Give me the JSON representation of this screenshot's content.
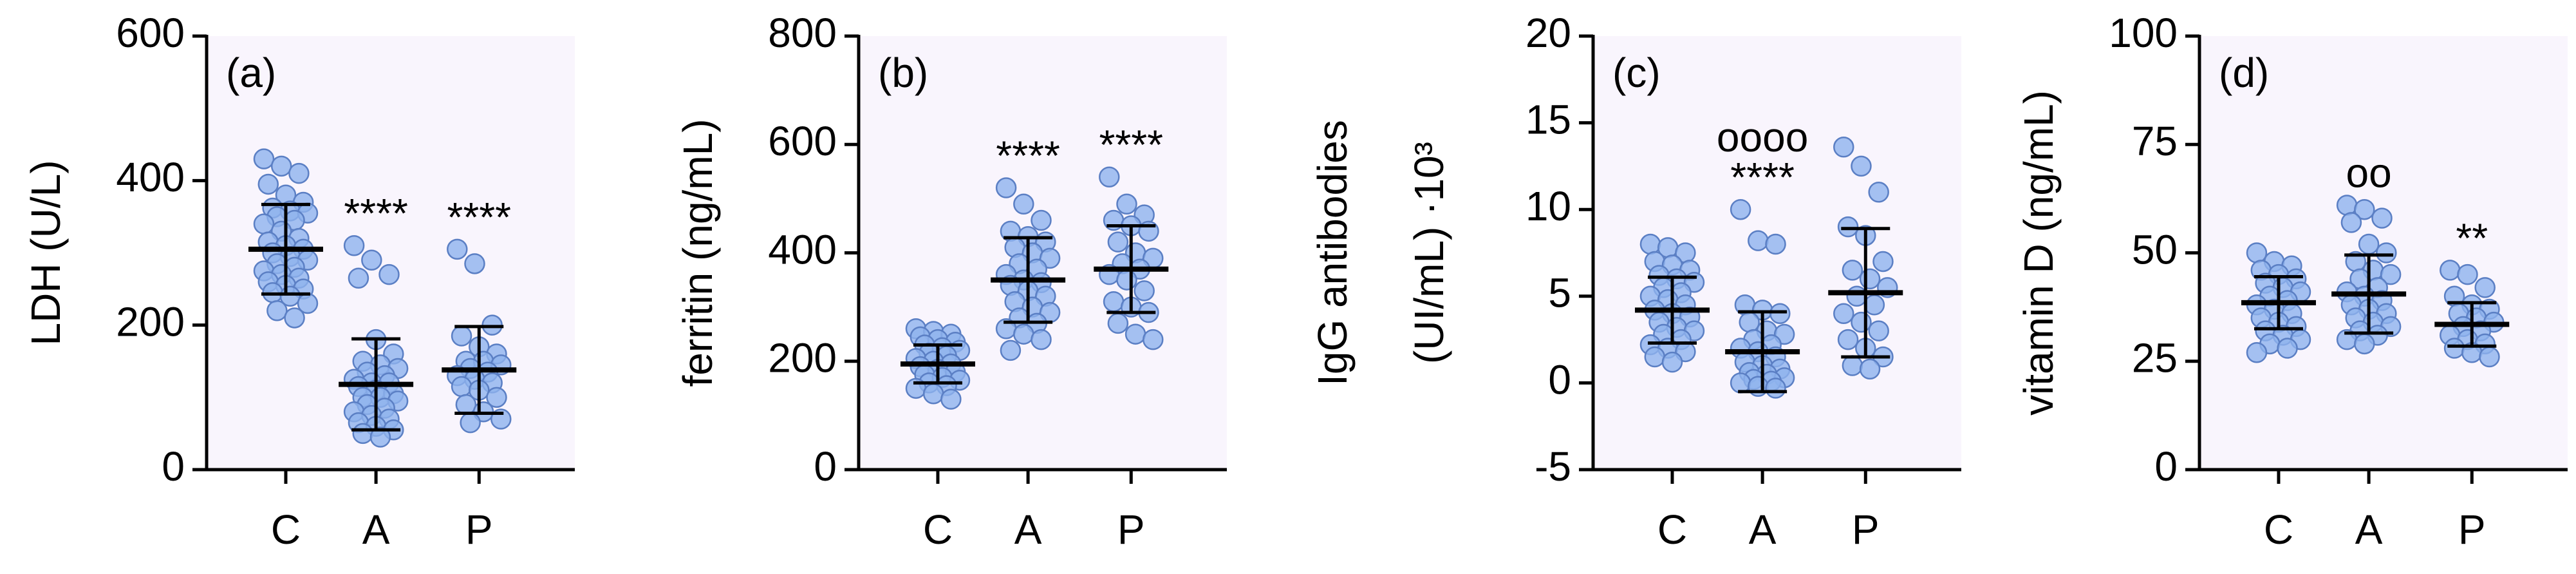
{
  "chart_data": [
    {
      "type": "dotplot",
      "panel_label": "(a)",
      "ylabel": [
        "LDH (U/L)"
      ],
      "categories": [
        "C",
        "A",
        "P"
      ],
      "color": "#8fb3ee",
      "ylim": [
        0,
        600
      ],
      "yticks": [
        0,
        200,
        400,
        600
      ],
      "points": [
        [
          430,
          420,
          410,
          395,
          380,
          370,
          362,
          358,
          355,
          350,
          345,
          340,
          330,
          320,
          315,
          310,
          305,
          300,
          295,
          290,
          285,
          280,
          275,
          270,
          265,
          260,
          255,
          250,
          245,
          240,
          230,
          220,
          210
        ],
        [
          310,
          290,
          270,
          265,
          180,
          160,
          150,
          145,
          140,
          135,
          130,
          125,
          120,
          120,
          115,
          110,
          105,
          100,
          100,
          95,
          90,
          85,
          80,
          75,
          70,
          65,
          60,
          55,
          50,
          45
        ],
        [
          305,
          285,
          200,
          185,
          170,
          160,
          150,
          150,
          145,
          140,
          135,
          130,
          125,
          120,
          115,
          110,
          100,
          90,
          80,
          70,
          65
        ]
      ],
      "mean": [
        305,
        118,
        138
      ],
      "sd": [
        62,
        63,
        60
      ],
      "annotations": [
        null,
        [
          "****"
        ],
        [
          "****"
        ]
      ]
    },
    {
      "type": "dotplot",
      "panel_label": "(b)",
      "ylabel": [
        "ferritin (ng/mL)"
      ],
      "categories": [
        "C",
        "A",
        "P"
      ],
      "color": "#8fb3ee",
      "ylim": [
        0,
        800
      ],
      "yticks": [
        0,
        200,
        400,
        600,
        800
      ],
      "points": [
        [
          260,
          255,
          250,
          245,
          240,
          235,
          230,
          225,
          220,
          215,
          210,
          205,
          200,
          195,
          190,
          185,
          180,
          175,
          170,
          165,
          160,
          155,
          150,
          140,
          130
        ],
        [
          520,
          490,
          460,
          440,
          430,
          420,
          410,
          400,
          390,
          380,
          370,
          360,
          350,
          345,
          340,
          330,
          320,
          310,
          300,
          290,
          280,
          270,
          260,
          250,
          240,
          220
        ],
        [
          540,
          490,
          470,
          460,
          450,
          440,
          420,
          400,
          390,
          380,
          370,
          360,
          350,
          330,
          310,
          300,
          290,
          270,
          250,
          240
        ]
      ],
      "mean": [
        195,
        350,
        370
      ],
      "sd": [
        35,
        78,
        80
      ],
      "annotations": [
        null,
        [
          "****"
        ],
        [
          "****"
        ]
      ]
    },
    {
      "type": "dotplot",
      "panel_label": "(c)",
      "ylabel": [
        "IgG antibodies",
        "(UI/mL) ·10³"
      ],
      "categories": [
        "C",
        "A",
        "P"
      ],
      "color": "#8fb3ee",
      "ylim": [
        -5,
        20
      ],
      "yticks": [
        -5,
        0,
        5,
        10,
        15,
        20
      ],
      "points": [
        [
          8,
          7.8,
          7.5,
          7,
          6.8,
          6.5,
          6.2,
          6,
          5.8,
          5.5,
          5.2,
          5,
          4.8,
          4.5,
          4.2,
          4,
          3.8,
          3.5,
          3.2,
          3,
          2.8,
          2.5,
          2.2,
          2,
          1.8,
          1.5,
          1.2
        ],
        [
          10,
          8.2,
          8,
          4.5,
          4.2,
          4,
          3.5,
          3,
          2.8,
          2.5,
          2.2,
          2,
          1.8,
          1.5,
          1.2,
          1,
          0.8,
          0.6,
          0.5,
          0.3,
          0.2,
          0.1,
          0,
          -0.2,
          -0.3
        ],
        [
          13.6,
          12.5,
          11,
          9,
          8.5,
          7,
          6.5,
          6,
          5.5,
          5,
          4.5,
          4,
          3.5,
          3,
          2.5,
          2,
          1.5,
          1,
          0.8
        ]
      ],
      "mean": [
        4.2,
        1.8,
        5.2
      ],
      "sd": [
        1.9,
        2.3,
        3.7
      ],
      "annotations": [
        null,
        [
          "oooo",
          "****"
        ],
        null
      ]
    },
    {
      "type": "dotplot",
      "panel_label": "(d)",
      "ylabel": [
        "vitamin D (ng/mL)"
      ],
      "categories": [
        "C",
        "A",
        "P"
      ],
      "color": "#8fb3ee",
      "ylim": [
        0,
        100
      ],
      "yticks": [
        0,
        25,
        50,
        75,
        100
      ],
      "points": [
        [
          50,
          48,
          47,
          46,
          45,
          44,
          43,
          42,
          41,
          40,
          39,
          38,
          37,
          36,
          35,
          34,
          33,
          32,
          31,
          30,
          29,
          28,
          27
        ],
        [
          61,
          60,
          58,
          57,
          52,
          50,
          48,
          46,
          45,
          44,
          42,
          41,
          40,
          39,
          38,
          37,
          36,
          35,
          34,
          33,
          32,
          31,
          30,
          29
        ],
        [
          46,
          45,
          42,
          40,
          38,
          37,
          36,
          35,
          34,
          33,
          32,
          31,
          30,
          29,
          28,
          27,
          26
        ]
      ],
      "mean": [
        38.5,
        40.5,
        33.5
      ],
      "sd": [
        6,
        9,
        5
      ],
      "annotations": [
        null,
        [
          "oo"
        ],
        [
          "**"
        ]
      ]
    }
  ]
}
